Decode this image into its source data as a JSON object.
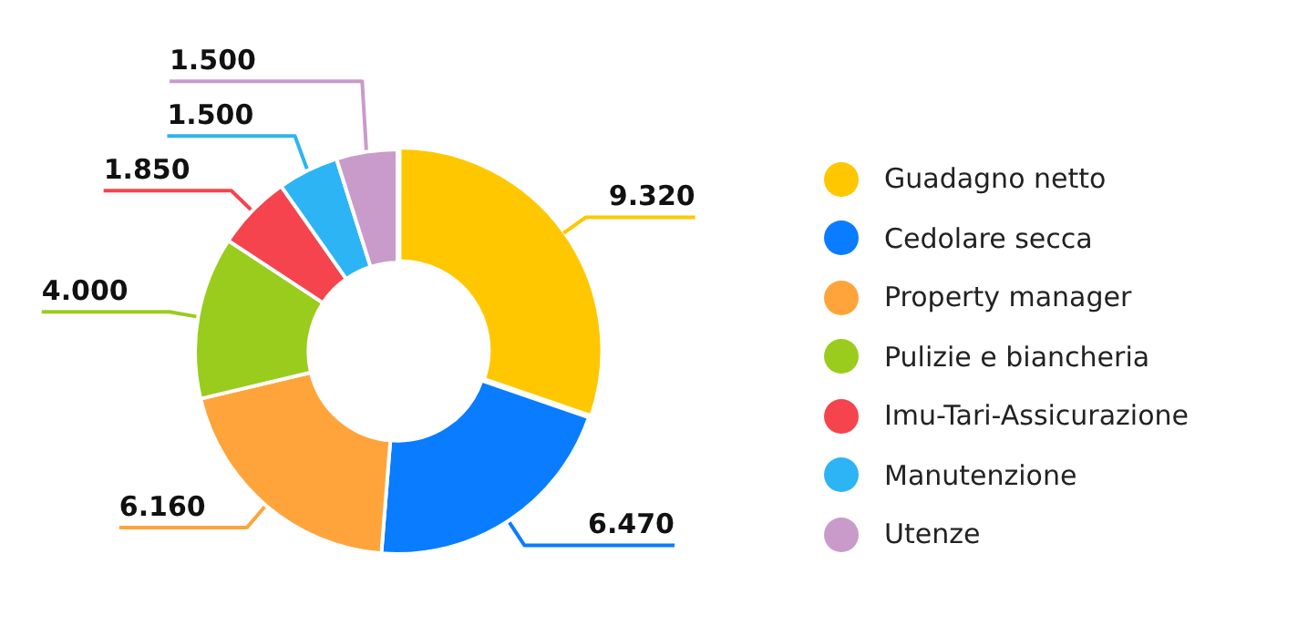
{
  "chart_data": {
    "type": "donut",
    "categories": [
      "Guadagno netto",
      "Cedolare secca",
      "Property manager",
      "Pulizie e biancheria",
      "Imu-Tari-Assicurazione",
      "Manutenzione",
      "Utenze"
    ],
    "values": [
      9320,
      6470,
      6160,
      4000,
      1850,
      1500,
      1500
    ],
    "value_labels": [
      "9.320",
      "6.470",
      "6.160",
      "4.000",
      "1.850",
      "1.500",
      "1.500"
    ],
    "colors": [
      "#ffc700",
      "#0a7cff",
      "#ffa43a",
      "#99cc1c",
      "#f5444e",
      "#2db4f4",
      "#c99bcb"
    ],
    "legend": "right"
  }
}
